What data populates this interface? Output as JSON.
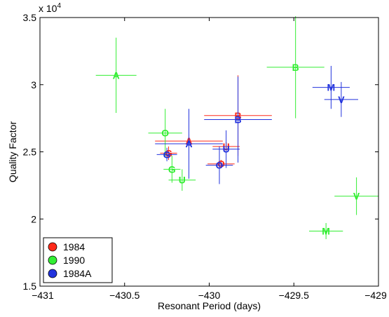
{
  "chart_data": {
    "type": "scatter",
    "title": "",
    "xlabel": "Resonant Period (days)",
    "ylabel": "Quality Factor",
    "y_exponent_label": "x 10",
    "y_exponent_power": "4",
    "xlim": [
      -431,
      -429
    ],
    "ylim": [
      1.5,
      3.5
    ],
    "xticks": [
      -431,
      -430.5,
      -430,
      -429.5,
      -429
    ],
    "xtick_labels": [
      "−431",
      "−430.5",
      "−430",
      "−429.5",
      "−429"
    ],
    "yticks": [
      1.5,
      2,
      2.5,
      3,
      3.5
    ],
    "ytick_labels": [
      "1.5",
      "2",
      "2.5",
      "3",
      "3.5"
    ],
    "grid": false,
    "legend_position": "bottom-left",
    "series": [
      {
        "name": "1984",
        "color": "#ff2a1a",
        "points": [
          {
            "label": "G",
            "x": -430.24,
            "y": 2.49,
            "xerr": 0.05,
            "yerr": 0.05
          },
          {
            "label": "A",
            "x": -430.12,
            "y": 2.58,
            "xerr": 0.2,
            "yerr": 0.05
          },
          {
            "label": "O",
            "x": -429.93,
            "y": 2.41,
            "xerr": 0.08,
            "yerr": 0.03
          },
          {
            "label": "U",
            "x": -429.9,
            "y": 2.54,
            "xerr": 0.08,
            "yerr": 0.03
          },
          {
            "label": "B",
            "x": -429.83,
            "y": 2.77,
            "xerr": 0.2,
            "yerr": 0.3
          }
        ]
      },
      {
        "name": "1990",
        "color": "#33ee33",
        "points": [
          {
            "label": "A",
            "x": -430.55,
            "y": 3.07,
            "xerr": 0.12,
            "yerr": 0.28
          },
          {
            "label": "O",
            "x": -430.26,
            "y": 2.64,
            "xerr": 0.1,
            "yerr": 0.18
          },
          {
            "label": "G",
            "x": -430.22,
            "y": 2.37,
            "xerr": 0.05,
            "yerr": 0.1
          },
          {
            "label": "U",
            "x": -430.16,
            "y": 2.29,
            "xerr": 0.08,
            "yerr": 0.08
          },
          {
            "label": "B",
            "x": -429.49,
            "y": 3.13,
            "xerr": 0.17,
            "yerr": 0.38
          },
          {
            "label": "M",
            "x": -429.31,
            "y": 1.91,
            "xerr": 0.1,
            "yerr": 0.06
          },
          {
            "label": "V",
            "x": -429.13,
            "y": 2.17,
            "xerr": 0.13,
            "yerr": 0.14
          }
        ]
      },
      {
        "name": "1984A",
        "color": "#2233dd",
        "points": [
          {
            "label": "G",
            "x": -430.25,
            "y": 2.48,
            "xerr": 0.06,
            "yerr": 0.05
          },
          {
            "label": "A",
            "x": -430.12,
            "y": 2.56,
            "xerr": 0.2,
            "yerr": 0.26
          },
          {
            "label": "O",
            "x": -429.94,
            "y": 2.4,
            "xerr": 0.08,
            "yerr": 0.14
          },
          {
            "label": "U",
            "x": -429.9,
            "y": 2.52,
            "xerr": 0.08,
            "yerr": 0.14
          },
          {
            "label": "B",
            "x": -429.83,
            "y": 2.74,
            "xerr": 0.2,
            "yerr": 0.32
          },
          {
            "label": "M",
            "x": -429.28,
            "y": 2.98,
            "xerr": 0.11,
            "yerr": 0.16
          },
          {
            "label": "V",
            "x": -429.22,
            "y": 2.89,
            "xerr": 0.1,
            "yerr": 0.13
          }
        ]
      }
    ]
  }
}
